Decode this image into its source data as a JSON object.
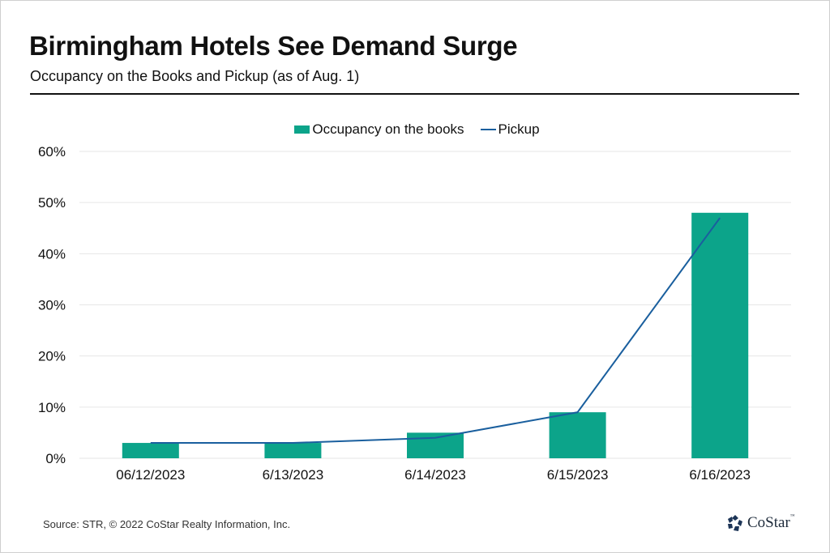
{
  "header": {
    "title": "Birmingham Hotels See Demand Surge",
    "subtitle": "Occupancy on the Books and Pickup (as of Aug. 1)"
  },
  "legend": {
    "bar_label": "Occupancy on the books",
    "line_label": "Pickup"
  },
  "colors": {
    "bar": "#0ca48a",
    "line": "#1a5f9e",
    "grid": "#e6e6e6"
  },
  "footer": {
    "source": "Source: STR, © 2022  CoStar Realty Information, Inc.",
    "logo_text": "CoStar",
    "logo_tm": "™"
  },
  "chart_data": {
    "type": "bar",
    "title": "Birmingham Hotels See Demand Surge",
    "subtitle": "Occupancy on the Books and Pickup (as of Aug. 1)",
    "categories": [
      "06/12/2023",
      "6/13/2023",
      "6/14/2023",
      "6/15/2023",
      "6/16/2023"
    ],
    "series": [
      {
        "name": "Occupancy on the books",
        "type": "bar",
        "values": [
          3,
          3,
          5,
          9,
          48
        ]
      },
      {
        "name": "Pickup",
        "type": "line",
        "values": [
          3,
          3,
          4,
          9,
          47
        ]
      }
    ],
    "xlabel": "",
    "ylabel": "",
    "ylim": [
      0,
      60
    ],
    "yticks": [
      0,
      10,
      20,
      30,
      40,
      50,
      60
    ],
    "ytick_labels": [
      "0%",
      "10%",
      "20%",
      "30%",
      "40%",
      "50%",
      "60%"
    ],
    "grid": true,
    "legend_position": "top-center"
  }
}
